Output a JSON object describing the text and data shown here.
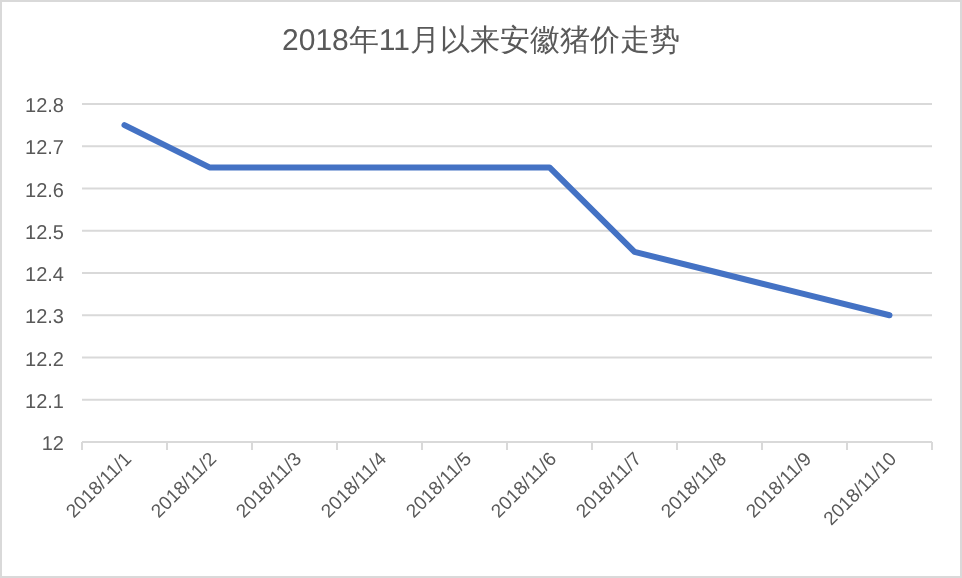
{
  "chart_data": {
    "type": "line",
    "title": "2018年11月以来安徽猪价走势",
    "categories": [
      "2018/11/1",
      "2018/11/2",
      "2018/11/3",
      "2018/11/4",
      "2018/11/5",
      "2018/11/6",
      "2018/11/7",
      "2018/11/8",
      "2018/11/9",
      "2018/11/10"
    ],
    "series": [
      {
        "color": "#4472c4",
        "values": [
          12.75,
          12.65,
          12.65,
          12.65,
          12.65,
          12.65,
          12.45,
          12.4,
          12.35,
          12.3
        ]
      }
    ],
    "ylim": [
      12,
      12.8
    ],
    "yticks": [
      12,
      12.1,
      12.2,
      12.3,
      12.4,
      12.5,
      12.6,
      12.7,
      12.8
    ],
    "grid": "y",
    "marker": "none",
    "line_style": "solid"
  }
}
